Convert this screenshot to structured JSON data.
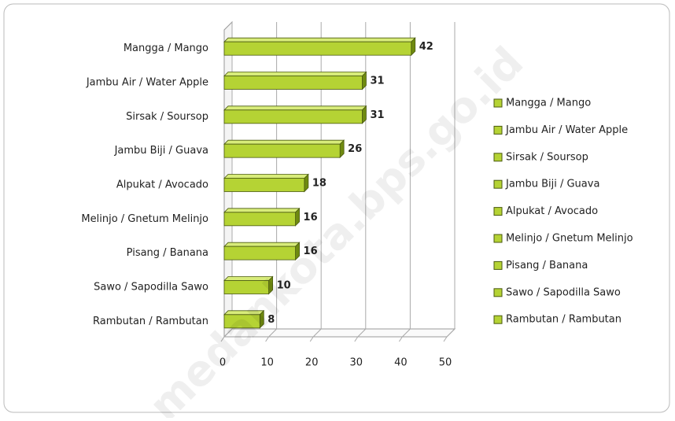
{
  "chart_data": {
    "type": "bar",
    "orientation": "horizontal",
    "categories": [
      "Mangga / Mango",
      "Jambu Air / Water Apple",
      "Sirsak / Soursop",
      "Jambu Biji / Guava",
      "Alpukat / Avocado",
      "Melinjo / Gnetum Melinjo",
      "Pisang / Banana",
      "Sawo / Sapodilla Sawo",
      "Rambutan / Rambutan"
    ],
    "values": [
      42,
      31,
      31,
      26,
      18,
      16,
      16,
      10,
      8
    ],
    "color": "#b5d334",
    "xlim": [
      0,
      50
    ],
    "xticks": [
      0,
      10,
      20,
      30,
      40,
      50
    ],
    "grid": true,
    "legend": "right",
    "watermark": "medankota.bps.go.id"
  }
}
